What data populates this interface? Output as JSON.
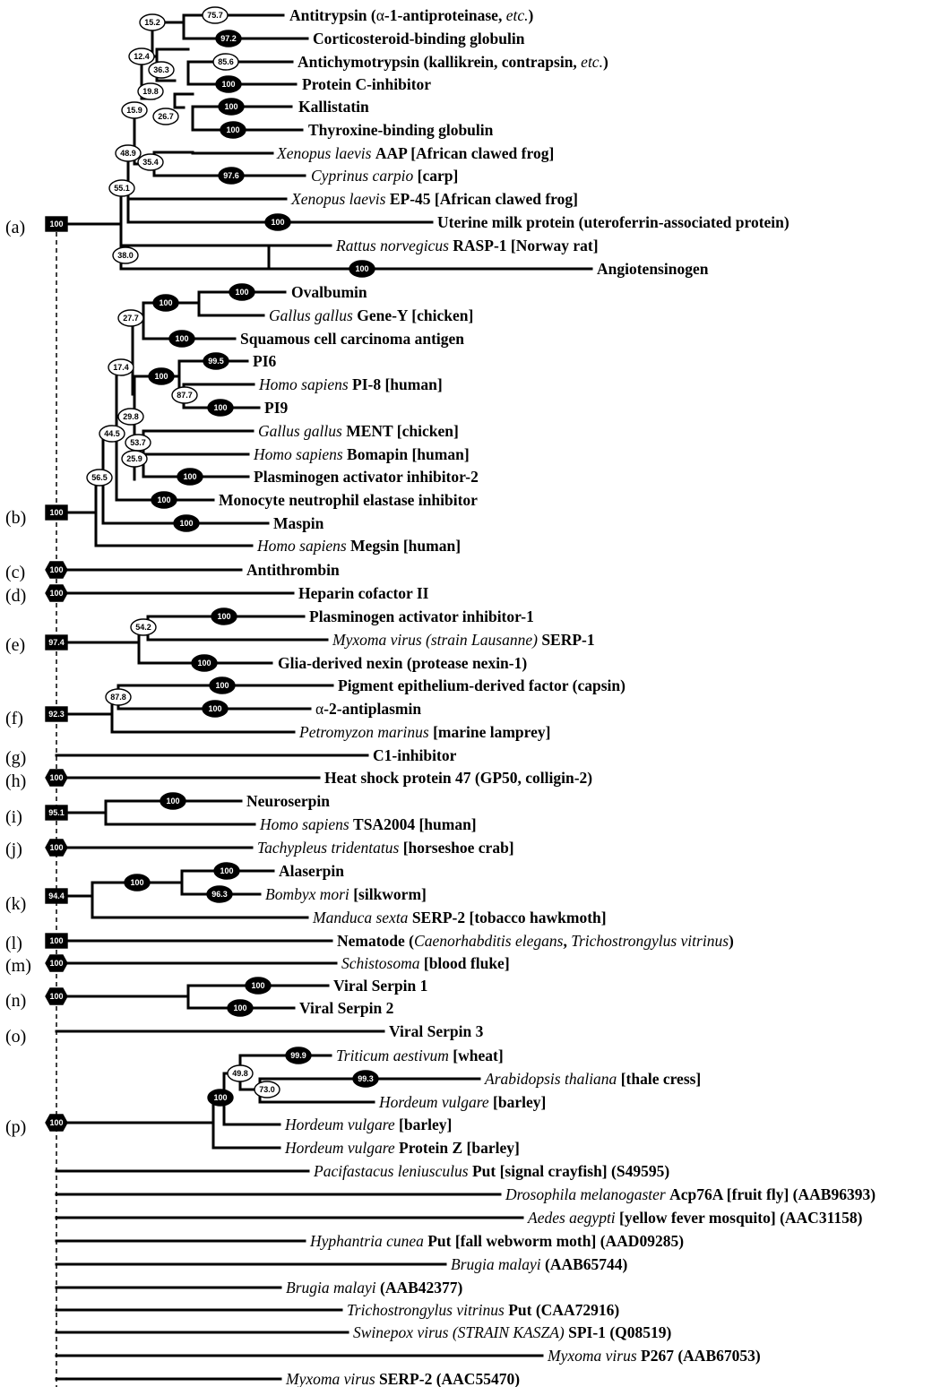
{
  "clade_labels": [
    "(a)",
    "(b)",
    "(c)",
    "(d)",
    "(e)",
    "(f)",
    "(g)",
    "(h)",
    "(i)",
    "(j)",
    "(k)",
    "(l)",
    "(m)",
    "(n)",
    "(o)",
    "(p)"
  ],
  "taxa": [
    [
      {
        "t": "Antitrypsin (",
        "s": "b"
      },
      {
        "t": "α",
        "s": ""
      },
      {
        "t": "-1-antiproteinase, ",
        "s": "b"
      },
      {
        "t": "etc.",
        "s": "i"
      },
      {
        "t": ")",
        "s": "b"
      }
    ],
    [
      {
        "t": "Corticosteroid-binding globulin",
        "s": "b"
      }
    ],
    [
      {
        "t": "Antichymotrypsin (kallikrein, contrapsin, ",
        "s": "b"
      },
      {
        "t": "etc.",
        "s": "i"
      },
      {
        "t": ")",
        "s": "b"
      }
    ],
    [
      {
        "t": "Protein C-inhibitor",
        "s": "b"
      }
    ],
    [
      {
        "t": "Kallistatin",
        "s": "b"
      }
    ],
    [
      {
        "t": "Thyroxine-binding globulin",
        "s": "b"
      }
    ],
    [
      {
        "t": "Xenopus laevis ",
        "s": "i"
      },
      {
        "t": "AAP [African clawed frog]",
        "s": "b"
      }
    ],
    [
      {
        "t": "Cyprinus carpio ",
        "s": "i"
      },
      {
        "t": "[carp]",
        "s": "b"
      }
    ],
    [
      {
        "t": "Xenopus laevis ",
        "s": "i"
      },
      {
        "t": "EP-45 [African clawed frog]",
        "s": "b"
      }
    ],
    [
      {
        "t": "Uterine milk protein (uteroferrin-associated protein)",
        "s": "b"
      }
    ],
    [
      {
        "t": "Rattus norvegicus ",
        "s": "i"
      },
      {
        "t": "RASP-1 [Norway rat]",
        "s": "b"
      }
    ],
    [
      {
        "t": "Angiotensinogen",
        "s": "b"
      }
    ],
    [
      {
        "t": "Ovalbumin",
        "s": "b"
      }
    ],
    [
      {
        "t": "Gallus gallus ",
        "s": "i"
      },
      {
        "t": "Gene-Y [chicken]",
        "s": "b"
      }
    ],
    [
      {
        "t": "Squamous cell carcinoma antigen",
        "s": "b"
      }
    ],
    [
      {
        "t": "PI6",
        "s": "b"
      }
    ],
    [
      {
        "t": "Homo sapiens ",
        "s": "i"
      },
      {
        "t": "PI-8 [human]",
        "s": "b"
      }
    ],
    [
      {
        "t": "PI9",
        "s": "b"
      }
    ],
    [
      {
        "t": "Gallus gallus ",
        "s": "i"
      },
      {
        "t": "MENT [chicken]",
        "s": "b"
      }
    ],
    [
      {
        "t": "Homo sapiens ",
        "s": "i"
      },
      {
        "t": "Bomapin [human]",
        "s": "b"
      }
    ],
    [
      {
        "t": "Plasminogen activator inhibitor-2",
        "s": "b"
      }
    ],
    [
      {
        "t": "Monocyte neutrophil elastase inhibitor",
        "s": "b"
      }
    ],
    [
      {
        "t": "Maspin",
        "s": "b"
      }
    ],
    [
      {
        "t": "Homo sapiens ",
        "s": "i"
      },
      {
        "t": "Megsin [human]",
        "s": "b"
      }
    ],
    [
      {
        "t": "Antithrombin",
        "s": "b"
      }
    ],
    [
      {
        "t": "Heparin cofactor II",
        "s": "b"
      }
    ],
    [
      {
        "t": "Plasminogen activator inhibitor-1",
        "s": "b"
      }
    ],
    [
      {
        "t": "Myxoma virus (strain Lausanne) ",
        "s": "i"
      },
      {
        "t": "SERP-1",
        "s": "b"
      }
    ],
    [
      {
        "t": "Glia-derived nexin (protease nexin-1)",
        "s": "b"
      }
    ],
    [
      {
        "t": "Pigment epithelium-derived factor (capsin)",
        "s": "b"
      }
    ],
    [
      {
        "t": "α",
        "s": ""
      },
      {
        "t": "-2-antiplasmin",
        "s": "b"
      }
    ],
    [
      {
        "t": "Petromyzon marinus ",
        "s": "i"
      },
      {
        "t": "[marine lamprey]",
        "s": "b"
      }
    ],
    [
      {
        "t": "C1-inhibitor",
        "s": "b"
      }
    ],
    [
      {
        "t": "Heat shock protein 47 (GP50, colligin-2)",
        "s": "b"
      }
    ],
    [
      {
        "t": "Neuroserpin",
        "s": "b"
      }
    ],
    [
      {
        "t": "Homo sapiens ",
        "s": "i"
      },
      {
        "t": "TSA2004 [human]",
        "s": "b"
      }
    ],
    [
      {
        "t": "Tachypleus tridentatus ",
        "s": "i"
      },
      {
        "t": "[horseshoe crab]",
        "s": "b"
      }
    ],
    [
      {
        "t": "Alaserpin",
        "s": "b"
      }
    ],
    [
      {
        "t": "Bombyx mori ",
        "s": "i"
      },
      {
        "t": "[silkworm]",
        "s": "b"
      }
    ],
    [
      {
        "t": "Manduca sexta ",
        "s": "i"
      },
      {
        "t": "SERP-2 [tobacco hawkmoth]",
        "s": "b"
      }
    ],
    [
      {
        "t": "Nematode (",
        "s": "b"
      },
      {
        "t": "Caenorhabditis elegans",
        "s": "i"
      },
      {
        "t": ", ",
        "s": "b"
      },
      {
        "t": "Trichostrongylus vitrinus",
        "s": "i"
      },
      {
        "t": ")",
        "s": "b"
      }
    ],
    [
      {
        "t": "Schistosoma ",
        "s": "i"
      },
      {
        "t": "[blood fluke]",
        "s": "b"
      }
    ],
    [
      {
        "t": "Viral Serpin 1",
        "s": "b"
      }
    ],
    [
      {
        "t": "Viral Serpin 2",
        "s": "b"
      }
    ],
    [
      {
        "t": "Viral Serpin 3",
        "s": "b"
      }
    ],
    [
      {
        "t": "Triticum aestivum ",
        "s": "i"
      },
      {
        "t": "[wheat]",
        "s": "b"
      }
    ],
    [
      {
        "t": "Arabidopsis thaliana ",
        "s": "i"
      },
      {
        "t": "[thale cress]",
        "s": "b"
      }
    ],
    [
      {
        "t": "Hordeum vulgare ",
        "s": "i"
      },
      {
        "t": "[barley]",
        "s": "b"
      }
    ],
    [
      {
        "t": "Hordeum vulgare ",
        "s": "i"
      },
      {
        "t": "[barley]",
        "s": "b"
      }
    ],
    [
      {
        "t": "Hordeum vulgare ",
        "s": "i"
      },
      {
        "t": "Protein Z [barley]",
        "s": "b"
      }
    ],
    [
      {
        "t": "Pacifastacus leniusculus ",
        "s": "i"
      },
      {
        "t": "Put [signal crayfish] ",
        "s": "b"
      },
      {
        "t": "(S49595)",
        "s": "b"
      }
    ],
    [
      {
        "t": "Drosophila melanogaster ",
        "s": "i"
      },
      {
        "t": "Acp76A [fruit fly] ",
        "s": "b"
      },
      {
        "t": "(AAB96393)",
        "s": "b"
      }
    ],
    [
      {
        "t": "Aedes aegypti ",
        "s": "i"
      },
      {
        "t": "[yellow fever mosquito] ",
        "s": "b"
      },
      {
        "t": "(AAC31158)",
        "s": "b"
      }
    ],
    [
      {
        "t": "Hyphantria cunea ",
        "s": "i"
      },
      {
        "t": "Put [fall webworm moth] ",
        "s": "b"
      },
      {
        "t": "(AAD09285)",
        "s": "b"
      }
    ],
    [
      {
        "t": "Brugia malayi ",
        "s": "i"
      },
      {
        "t": "(AAB65744)",
        "s": "b"
      }
    ],
    [
      {
        "t": "Brugia malayi ",
        "s": "i"
      },
      {
        "t": "(AAB42377)",
        "s": "b"
      }
    ],
    [
      {
        "t": "Trichostrongylus vitrinus ",
        "s": "i"
      },
      {
        "t": "Put ",
        "s": "b"
      },
      {
        "t": "(CAA72916)",
        "s": "b"
      }
    ],
    [
      {
        "t": "Swinepox virus (STRAIN KASZA) ",
        "s": "i"
      },
      {
        "t": "SPI-1 ",
        "s": "b"
      },
      {
        "t": "(Q08519)",
        "s": "b"
      }
    ],
    [
      {
        "t": "Myxoma virus ",
        "s": "i"
      },
      {
        "t": "P267 ",
        "s": "b"
      },
      {
        "t": "(AAB67053)",
        "s": "b"
      }
    ],
    [
      {
        "t": "Myxoma virus ",
        "s": "i"
      },
      {
        "t": "SERP-2 ",
        "s": "b"
      },
      {
        "t": "(AAC55470)",
        "s": "b"
      }
    ]
  ],
  "bootstrap": [
    {
      "v": "75.7",
      "f": "w"
    },
    {
      "v": "15.2",
      "f": "w"
    },
    {
      "v": "97.2",
      "f": "b"
    },
    {
      "v": "12.4",
      "f": "w"
    },
    {
      "v": "85.6",
      "f": "w"
    },
    {
      "v": "36.3",
      "f": "w"
    },
    {
      "v": "100",
      "f": "b"
    },
    {
      "v": "19.8",
      "f": "w"
    },
    {
      "v": "100",
      "f": "b"
    },
    {
      "v": "15.9",
      "f": "w"
    },
    {
      "v": "26.7",
      "f": "w"
    },
    {
      "v": "100",
      "f": "b"
    },
    {
      "v": "48.9",
      "f": "w"
    },
    {
      "v": "35.4",
      "f": "w"
    },
    {
      "v": "97.6",
      "f": "b"
    },
    {
      "v": "55.1",
      "f": "w"
    },
    {
      "v": "100",
      "f": "b"
    },
    {
      "v": "38.0",
      "f": "w"
    },
    {
      "v": "100",
      "f": "b"
    },
    {
      "v": "100",
      "f": "b"
    },
    {
      "v": "100",
      "f": "b"
    },
    {
      "v": "100",
      "f": "b"
    },
    {
      "v": "27.7",
      "f": "w"
    },
    {
      "v": "100",
      "f": "b"
    },
    {
      "v": "99.5",
      "f": "b"
    },
    {
      "v": "100",
      "f": "b"
    },
    {
      "v": "17.4",
      "f": "w"
    },
    {
      "v": "87.7",
      "f": "w"
    },
    {
      "v": "100",
      "f": "b"
    },
    {
      "v": "29.8",
      "f": "w"
    },
    {
      "v": "44.5",
      "f": "w"
    },
    {
      "v": "53.7",
      "f": "w"
    },
    {
      "v": "25.9",
      "f": "w"
    },
    {
      "v": "100",
      "f": "b"
    },
    {
      "v": "56.5",
      "f": "w"
    },
    {
      "v": "100",
      "f": "b"
    },
    {
      "v": "100",
      "f": "b"
    },
    {
      "v": "100",
      "f": "b"
    },
    {
      "v": "100",
      "f": "b"
    },
    {
      "v": "100",
      "f": "b"
    },
    {
      "v": "54.2",
      "f": "w"
    },
    {
      "v": "97.4",
      "f": "b"
    },
    {
      "v": "100",
      "f": "b"
    },
    {
      "v": "100",
      "f": "b"
    },
    {
      "v": "87.8",
      "f": "w"
    },
    {
      "v": "100",
      "f": "b"
    },
    {
      "v": "92.3",
      "f": "b"
    },
    {
      "v": "100",
      "f": "b"
    },
    {
      "v": "100",
      "f": "b"
    },
    {
      "v": "95.1",
      "f": "b"
    },
    {
      "v": "100",
      "f": "b"
    },
    {
      "v": "100",
      "f": "b"
    },
    {
      "v": "100",
      "f": "b"
    },
    {
      "v": "96.3",
      "f": "b"
    },
    {
      "v": "94.4",
      "f": "b"
    },
    {
      "v": "100",
      "f": "b"
    },
    {
      "v": "100",
      "f": "b"
    },
    {
      "v": "100",
      "f": "b"
    },
    {
      "v": "100",
      "f": "b"
    },
    {
      "v": "100",
      "f": "b"
    },
    {
      "v": "100",
      "f": "b"
    },
    {
      "v": "99.9",
      "f": "b"
    },
    {
      "v": "49.8",
      "f": "w"
    },
    {
      "v": "99.3",
      "f": "b"
    },
    {
      "v": "73.0",
      "f": "w"
    },
    {
      "v": "100",
      "f": "b"
    },
    {
      "v": "100",
      "f": "b"
    }
  ]
}
